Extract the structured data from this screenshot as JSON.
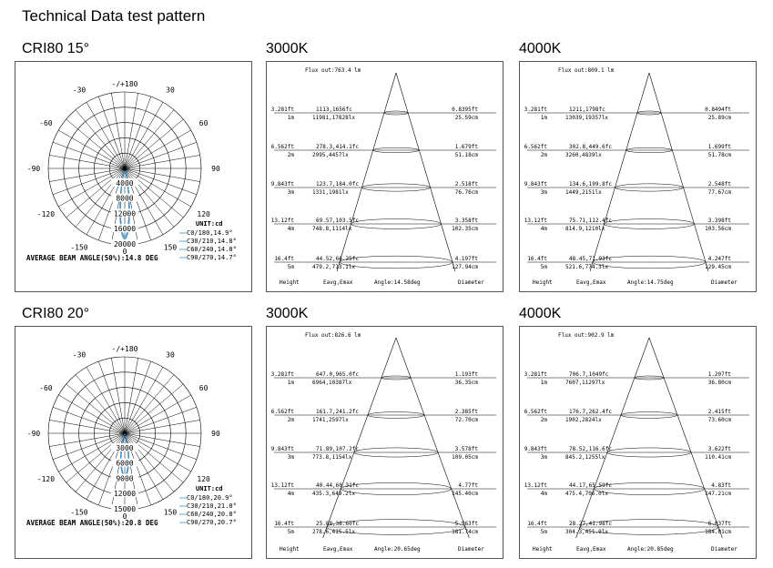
{
  "page_title": "Technical Data test pattern",
  "rows": [
    {
      "label": "CRI80   15°",
      "polar": {
        "angle_top": "-/+180",
        "angles_left": [
          "-150",
          "-120",
          "-90",
          "-60",
          "-30"
        ],
        "angles_right": [
          "150",
          "120",
          "90",
          "60",
          "30"
        ],
        "center_zero": "0",
        "radial_labels": [
          "4000",
          "8000",
          "12000",
          "16000",
          "20000"
        ],
        "bottom_zero": "0",
        "unit": "UNIT:cd",
        "legend": [
          "C0/180,14.9°",
          "C30/210,14.8°",
          "C60/240,14.8°",
          "C90/270,14.7°"
        ],
        "beam": "AVERAGE BEAM ANGLE(50%):14.8 DEG",
        "beam_half_angle_deg": 7.4,
        "peak_fraction": 0.92
      },
      "cones": [
        {
          "header": "3000K",
          "flux": "Flux out:763.4 lm",
          "levels": [
            {
              "h_ft": "3.281ft",
              "h_m": "1m",
              "lux_fc": "1113,1656fc",
              "lux_lx": "11981,17828lx",
              "d_ft": "0.8395ft",
              "d_cm": "25.59cm"
            },
            {
              "h_ft": "6.562ft",
              "h_m": "2m",
              "lux_fc": "278.3,414.1fc",
              "lux_lx": "2995,4457lx",
              "d_ft": "1.679ft",
              "d_cm": "51.18cm"
            },
            {
              "h_ft": "9.843ft",
              "h_m": "3m",
              "lux_fc": "123.7,184.0fc",
              "lux_lx": "1331,1981lx",
              "d_ft": "2.518ft",
              "d_cm": "76.76cm"
            },
            {
              "h_ft": "13.12ft",
              "h_m": "4m",
              "lux_fc": "69.57,103.5fc",
              "lux_lx": "748.8,1114lx",
              "d_ft": "3.358ft",
              "d_cm": "102.35cm"
            },
            {
              "h_ft": "16.4ft",
              "h_m": "5m",
              "lux_fc": "44.52,66.25fc",
              "lux_lx": "479.2,713.1lx",
              "d_ft": "4.197ft",
              "d_cm": "127.94cm"
            }
          ],
          "footer": {
            "height": "Height",
            "eavg": "Eavg,Emax",
            "angle": "Angle:14.58deg",
            "diameter": "Diameter"
          }
        },
        {
          "header": "4000K",
          "flux": "Flux out:809.1 lm",
          "levels": [
            {
              "h_ft": "3.281ft",
              "h_m": "1m",
              "lux_fc": "1211,1798fc",
              "lux_lx": "13039,19357lx",
              "d_ft": "0.8494ft",
              "d_cm": "25.89cm"
            },
            {
              "h_ft": "6.562ft",
              "h_m": "2m",
              "lux_fc": "302.8,449.6fc",
              "lux_lx": "3260,4839lx",
              "d_ft": "1.699ft",
              "d_cm": "51.78cm"
            },
            {
              "h_ft": "9.843ft",
              "h_m": "3m",
              "lux_fc": "134.6,199.8fc",
              "lux_lx": "1449,2151lx",
              "d_ft": "2.548ft",
              "d_cm": "77.67cm"
            },
            {
              "h_ft": "13.12ft",
              "h_m": "4m",
              "lux_fc": "75.71,112.4fc",
              "lux_lx": "814.9,1210lx",
              "d_ft": "3.398ft",
              "d_cm": "103.56cm"
            },
            {
              "h_ft": "16.4ft",
              "h_m": "5m",
              "lux_fc": "48.45,71.93fc",
              "lux_lx": "521.6,774.3lx",
              "d_ft": "4.247ft",
              "d_cm": "129.45cm"
            }
          ],
          "footer": {
            "height": "Height",
            "eavg": "Eavg,Emax",
            "angle": "Angle:14.75deg",
            "diameter": "Diameter"
          }
        }
      ]
    },
    {
      "label": "CRI80   20°",
      "polar": {
        "angle_top": "-/+180",
        "angles_left": [
          "-150",
          "-120",
          "-90",
          "-60",
          "-30"
        ],
        "angles_right": [
          "150",
          "120",
          "90",
          "60",
          "30"
        ],
        "center_zero": "0",
        "radial_labels": [
          "3000",
          "6000",
          "9000",
          "12000",
          "15000"
        ],
        "bottom_zero": "0",
        "unit": "UNIT:cd",
        "legend": [
          "C0/180,20.9°",
          "C30/210,21.0°",
          "C60/240,20.8°",
          "C90/270,20.7°"
        ],
        "beam": "AVERAGE BEAM ANGLE(50%):20.8 DEG",
        "beam_half_angle_deg": 10.4,
        "peak_fraction": 0.56
      },
      "cones": [
        {
          "header": "3000K",
          "flux": "Flux out:826.6 lm",
          "levels": [
            {
              "h_ft": "3.281ft",
              "h_m": "1m",
              "lux_fc": "647.0,965.0fc",
              "lux_lx": "6964,10387lx",
              "d_ft": "1.193ft",
              "d_cm": "36.35cm"
            },
            {
              "h_ft": "6.562ft",
              "h_m": "2m",
              "lux_fc": "161.7,241.2fc",
              "lux_lx": "1741,2597lx",
              "d_ft": "2.385ft",
              "d_cm": "72.70cm"
            },
            {
              "h_ft": "9.843ft",
              "h_m": "3m",
              "lux_fc": "71.89,107.2fc",
              "lux_lx": "773.8,1154lx",
              "d_ft": "3.578ft",
              "d_cm": "109.05cm"
            },
            {
              "h_ft": "13.12ft",
              "h_m": "4m",
              "lux_fc": "40.44,60.31fc",
              "lux_lx": "435.3,649.2lx",
              "d_ft": "4.77ft",
              "d_cm": "145.40cm"
            },
            {
              "h_ft": "16.4ft",
              "h_m": "5m",
              "lux_fc": "25.88,38.60fc",
              "lux_lx": "278.6,415.5lx",
              "d_ft": "5.963ft",
              "d_cm": "181.74cm"
            }
          ],
          "footer": {
            "height": "Height",
            "eavg": "Eavg,Emax",
            "angle": "Angle:20.65deg",
            "diameter": "Diameter"
          }
        },
        {
          "header": "4000K",
          "flux": "Flux out:902.9 lm",
          "levels": [
            {
              "h_ft": "3.281ft",
              "h_m": "1m",
              "lux_fc": "706.7,1049fc",
              "lux_lx": "7607,11297lx",
              "d_ft": "1.207ft",
              "d_cm": "36.80cm"
            },
            {
              "h_ft": "6.562ft",
              "h_m": "2m",
              "lux_fc": "176.7,262.4fc",
              "lux_lx": "1902,2824lx",
              "d_ft": "2.415ft",
              "d_cm": "73.60cm"
            },
            {
              "h_ft": "9.843ft",
              "h_m": "3m",
              "lux_fc": "78.52,116.6fc",
              "lux_lx": "845.2,1255lx",
              "d_ft": "3.622ft",
              "d_cm": "110.41cm"
            },
            {
              "h_ft": "13.12ft",
              "h_m": "4m",
              "lux_fc": "44.17,65.59fc",
              "lux_lx": "475.4,706.0lx",
              "d_ft": "4.83ft",
              "d_cm": "147.21cm"
            },
            {
              "h_ft": "16.4ft",
              "h_m": "5m",
              "lux_fc": "28.27,41.98fc",
              "lux_lx": "304.3,451.9lx",
              "d_ft": "6.037ft",
              "d_cm": "184.01cm"
            }
          ],
          "footer": {
            "height": "Height",
            "eavg": "Eavg,Emax",
            "angle": "Angle:20.85deg",
            "diameter": "Diameter"
          }
        }
      ]
    }
  ],
  "colors": {
    "curve": "#3d8fc9",
    "grid": "#000000",
    "border": "#555555"
  }
}
